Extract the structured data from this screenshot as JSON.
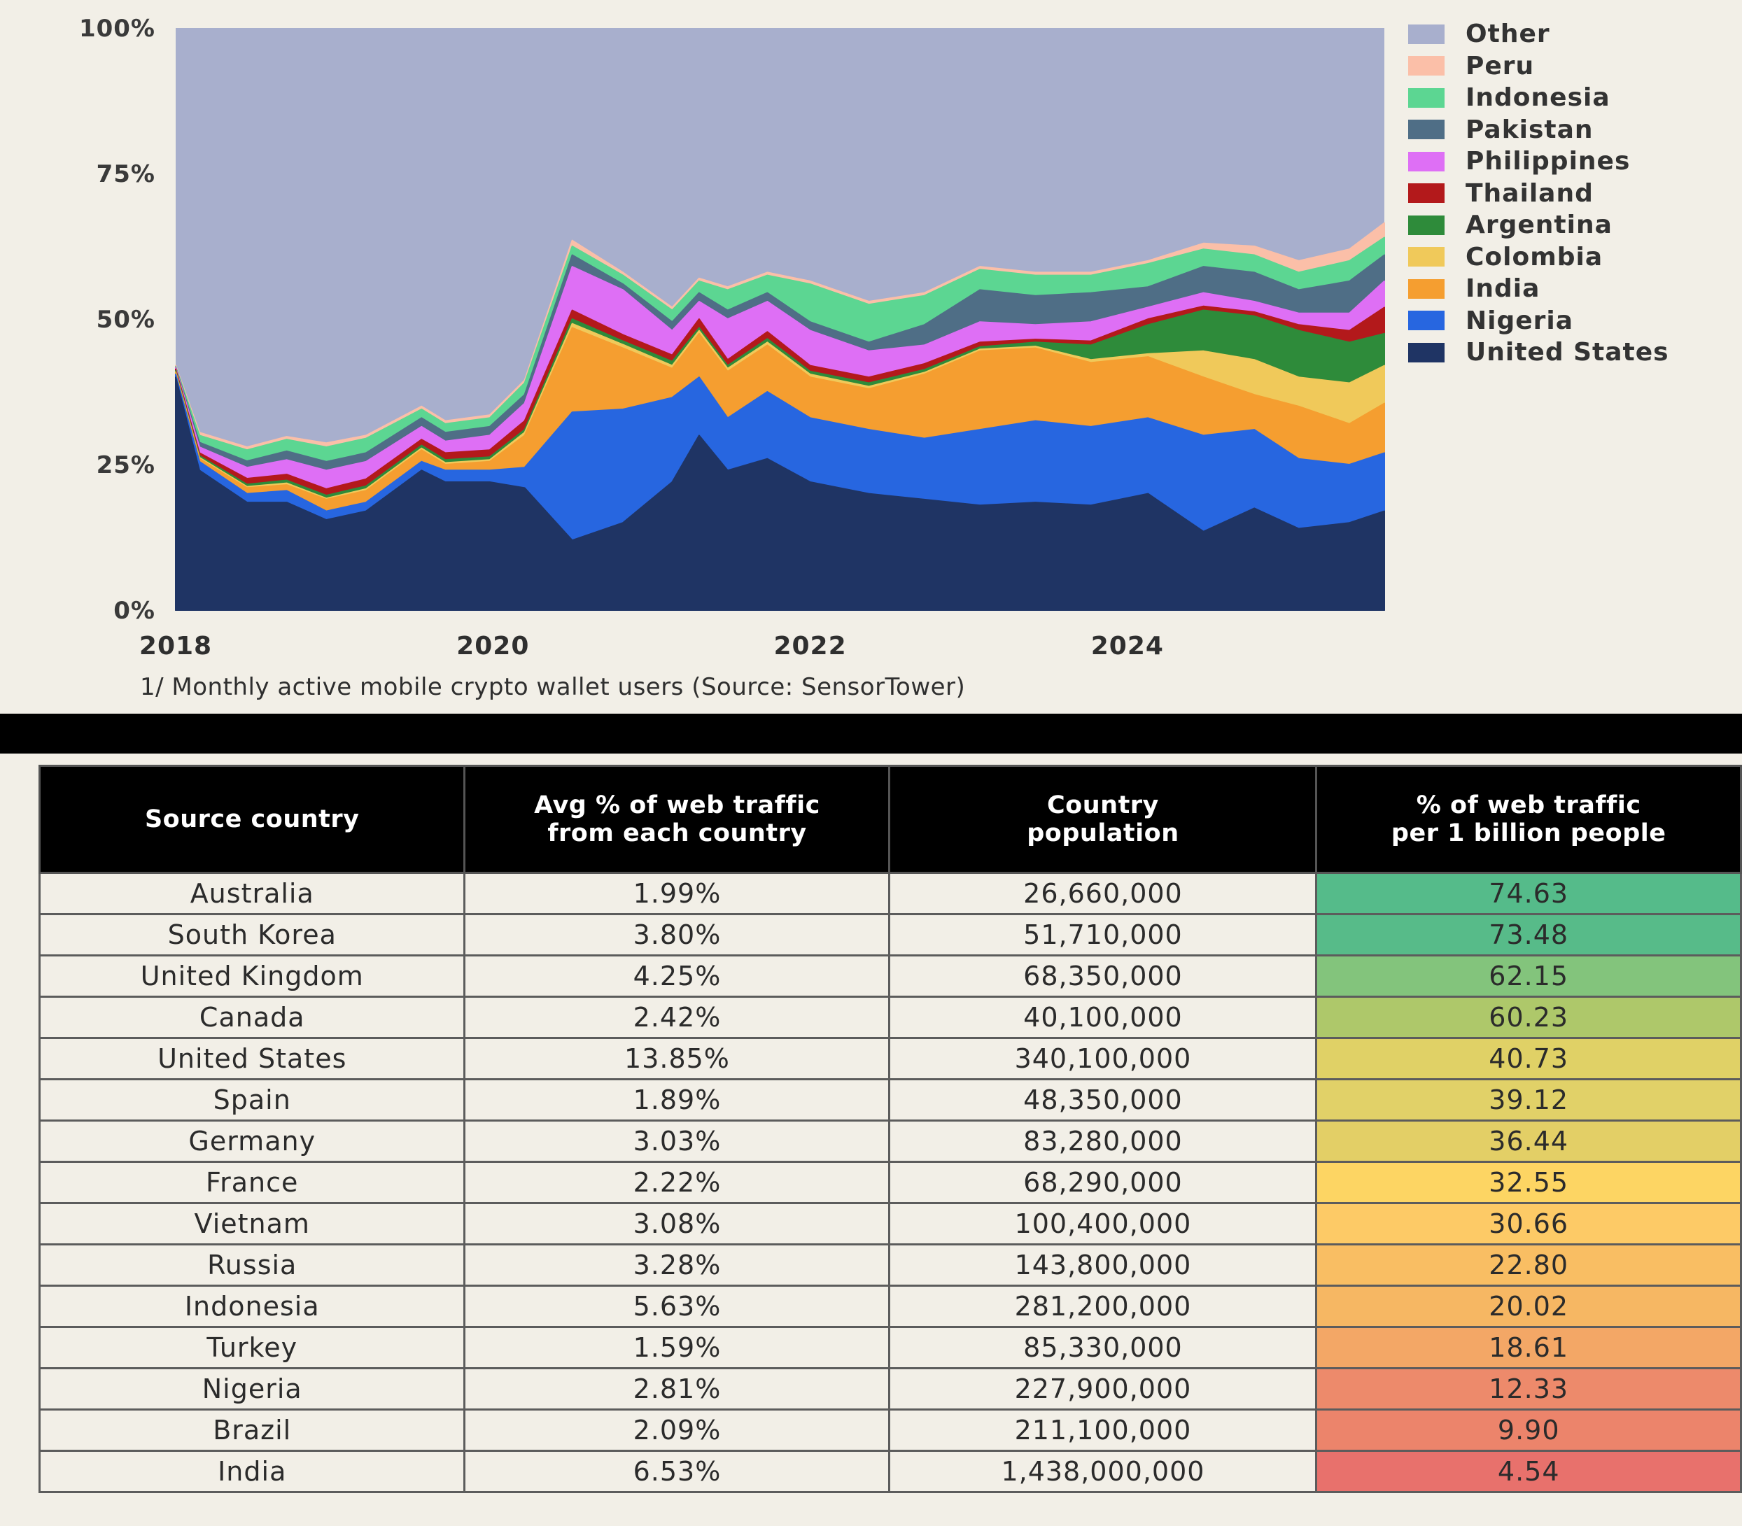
{
  "chart_data": {
    "type": "area",
    "stacked": true,
    "normalized": true,
    "title": "",
    "caption": "1/ Monthly active mobile crypto wallet users (Source: SensorTower)",
    "xlabel": "",
    "ylabel": "",
    "ylim": [
      0,
      100
    ],
    "xlim": [
      2018.0,
      2025.62
    ],
    "yticks": [
      "0%",
      "25%",
      "50%",
      "75%",
      "100%"
    ],
    "ytick_values": [
      0,
      25,
      50,
      75,
      100
    ],
    "xticks": [
      "2018",
      "2020",
      "2022",
      "2024"
    ],
    "xtick_values": [
      2018,
      2020,
      2022,
      2024
    ],
    "grid": false,
    "legend_position": "right",
    "x": [
      2018.0,
      2018.15,
      2018.45,
      2018.7,
      2018.95,
      2019.2,
      2019.55,
      2019.7,
      2019.98,
      2020.2,
      2020.5,
      2020.82,
      2021.13,
      2021.3,
      2021.48,
      2021.73,
      2022.0,
      2022.37,
      2022.72,
      2023.07,
      2023.42,
      2023.77,
      2024.13,
      2024.48,
      2024.8,
      2025.08,
      2025.4,
      2025.62
    ],
    "series": [
      {
        "name": "United States",
        "color": "#1f3464",
        "values": [
          40,
          24,
          18.5,
          18.5,
          15.5,
          17,
          24,
          22,
          22,
          21,
          12,
          15,
          22,
          30,
          24,
          26,
          22,
          20,
          19,
          18,
          18.5,
          18,
          20,
          13.5,
          17.5,
          14,
          15,
          17
        ]
      },
      {
        "name": "Nigeria",
        "color": "#2766e0",
        "values": [
          0.5,
          1.5,
          1.5,
          2,
          1.5,
          1.5,
          1.5,
          2,
          2,
          3.5,
          22,
          19.5,
          14.5,
          10,
          9,
          11.5,
          11,
          11,
          10.5,
          13,
          14,
          13.5,
          13,
          16.5,
          13.5,
          12,
          10,
          10
        ]
      },
      {
        "name": "India",
        "color": "#f59e30",
        "values": [
          0.3,
          0.5,
          1,
          1,
          2,
          2,
          2,
          1,
          1.5,
          5.5,
          14.5,
          10.5,
          5,
          7.5,
          8,
          8,
          7,
          7,
          11,
          13.5,
          12.5,
          11,
          10.5,
          10,
          6,
          9,
          7,
          8.5
        ]
      },
      {
        "name": "Colombia",
        "color": "#f0c95a",
        "values": [
          0.1,
          0.2,
          0.2,
          0.3,
          0.2,
          0.3,
          0.3,
          0.3,
          0.3,
          0.5,
          0.7,
          0.6,
          0.5,
          0.5,
          0.5,
          0.5,
          0.5,
          0.4,
          0.3,
          0.3,
          0.3,
          0.5,
          0.5,
          4.5,
          6,
          5,
          7,
          6.5
        ]
      },
      {
        "name": "Argentina",
        "color": "#2e8b3a",
        "values": [
          0.2,
          0.3,
          0.4,
          0.5,
          0.5,
          0.5,
          0.5,
          0.5,
          0.5,
          0.5,
          0.8,
          0.6,
          0.7,
          0.5,
          0.5,
          0.6,
          0.5,
          0.6,
          0.5,
          0.4,
          0.7,
          2.5,
          5,
          7,
          7.5,
          8,
          7,
          5.5
        ]
      },
      {
        "name": "Thailand",
        "color": "#b3191b",
        "values": [
          0.3,
          0.5,
          1,
          1,
          1.1,
          1.2,
          1,
          1.2,
          1.2,
          1.5,
          1.5,
          1.1,
          1.1,
          1.5,
          1,
          1.2,
          1,
          1,
          1,
          0.8,
          0.5,
          0.7,
          1,
          0.7,
          0.7,
          1,
          2,
          4.5
        ]
      },
      {
        "name": "Philippines",
        "color": "#de6ff5",
        "values": [
          0.2,
          1,
          1.9,
          2.5,
          3.2,
          3,
          2.2,
          2,
          2.5,
          3,
          7.5,
          7.7,
          4.2,
          3,
          7,
          5.2,
          6,
          4.5,
          3.2,
          3.5,
          2.5,
          3.3,
          2,
          2.3,
          1.8,
          2,
          3,
          4.5
        ]
      },
      {
        "name": "Pakistan",
        "color": "#4f6e86",
        "values": [
          0.1,
          0.8,
          1.1,
          1.5,
          1.5,
          1.5,
          1.5,
          1.5,
          1.5,
          1.5,
          2,
          1,
          1.5,
          1.5,
          1.5,
          1.5,
          1.5,
          1.5,
          3.5,
          5.5,
          5,
          5,
          3.5,
          4.5,
          5,
          4,
          5.5,
          4.5
        ]
      },
      {
        "name": "Indonesia",
        "color": "#5cd692",
        "values": [
          0.1,
          1.2,
          1.9,
          2,
          2.5,
          2.5,
          1.5,
          1.5,
          1.5,
          2,
          1.5,
          1.5,
          2,
          2,
          3.5,
          3,
          6.5,
          6.5,
          5,
          3.5,
          3.5,
          3,
          4,
          3,
          3,
          3,
          3.5,
          3
        ]
      },
      {
        "name": "Peru",
        "color": "#fbbfa8",
        "values": [
          0.2,
          0.5,
          0.5,
          0.5,
          0.7,
          0.5,
          0.5,
          0.5,
          0.5,
          0.5,
          1,
          0.5,
          0.5,
          0.5,
          0.5,
          0.5,
          0.5,
          0.5,
          0.5,
          0.5,
          0.5,
          0.5,
          0.5,
          1,
          1.5,
          2,
          2,
          2.5
        ]
      },
      {
        "name": "Other",
        "color": "#a8afcd",
        "values": "remainder to 100%"
      }
    ],
    "legend": [
      "Other",
      "Peru",
      "Indonesia",
      "Pakistan",
      "Philippines",
      "Thailand",
      "Argentina",
      "Colombia",
      "India",
      "Nigeria",
      "United States"
    ]
  },
  "table": {
    "headers": [
      [
        "Source country"
      ],
      [
        "Avg % of web traffic",
        "from each country"
      ],
      [
        "Country",
        "population"
      ],
      [
        "% of web traffic",
        "per 1 billion people"
      ]
    ],
    "rows": [
      {
        "country": "Australia",
        "avg_pct": "1.99%",
        "population": "26,660,000",
        "per_billion": "74.63",
        "color": "#55bb8a"
      },
      {
        "country": "South Korea",
        "avg_pct": "3.80%",
        "population": "51,710,000",
        "per_billion": "73.48",
        "color": "#57bb89"
      },
      {
        "country": "United Kingdom",
        "avg_pct": "4.25%",
        "population": "68,350,000",
        "per_billion": "62.15",
        "color": "#83c47c"
      },
      {
        "country": "Canada",
        "avg_pct": "2.42%",
        "population": "40,100,000",
        "per_billion": "60.23",
        "color": "#aec86a"
      },
      {
        "country": "United States",
        "avg_pct": "13.85%",
        "population": "340,100,000",
        "per_billion": "40.73",
        "color": "#e0d166"
      },
      {
        "country": "Spain",
        "avg_pct": "1.89%",
        "population": "48,350,000",
        "per_billion": "39.12",
        "color": "#e1d168"
      },
      {
        "country": "Germany",
        "avg_pct": "3.03%",
        "population": "83,280,000",
        "per_billion": "36.44",
        "color": "#e3cf66"
      },
      {
        "country": "France",
        "avg_pct": "2.22%",
        "population": "68,290,000",
        "per_billion": "32.55",
        "color": "#fdd563"
      },
      {
        "country": "Vietnam",
        "avg_pct": "3.08%",
        "population": "100,400,000",
        "per_billion": "30.66",
        "color": "#fdca66"
      },
      {
        "country": "Russia",
        "avg_pct": "3.28%",
        "population": "143,800,000",
        "per_billion": "22.80",
        "color": "#f9be63"
      },
      {
        "country": "Indonesia",
        "avg_pct": "5.63%",
        "population": "281,200,000",
        "per_billion": "20.02",
        "color": "#f6b763"
      },
      {
        "country": "Turkey",
        "avg_pct": "1.59%",
        "population": "85,330,000",
        "per_billion": "18.61",
        "color": "#f3a766"
      },
      {
        "country": "Nigeria",
        "avg_pct": "2.81%",
        "population": "227,900,000",
        "per_billion": "12.33",
        "color": "#ed8a6b"
      },
      {
        "country": "Brazil",
        "avg_pct": "2.09%",
        "population": "211,100,000",
        "per_billion": "9.90",
        "color": "#ec846b"
      },
      {
        "country": "India",
        "avg_pct": "6.53%",
        "population": "1,438,000,000",
        "per_billion": "4.54",
        "color": "#e8716c"
      }
    ]
  }
}
